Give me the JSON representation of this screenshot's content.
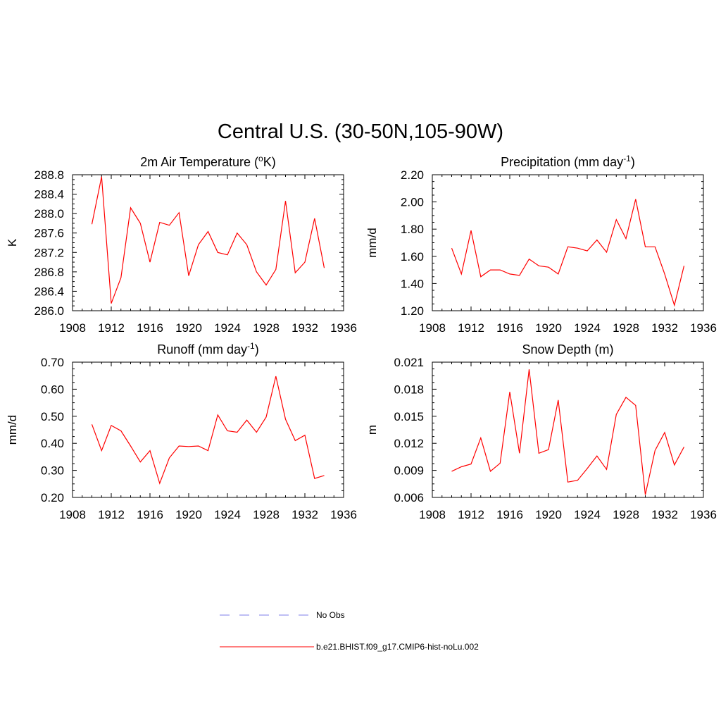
{
  "figure_title": "Central U.S. (30-50N,105-90W)",
  "legend": {
    "entries": [
      {
        "label": "No Obs",
        "color": "#9999ee",
        "style": "dashed"
      },
      {
        "label": "b.e21.BHIST.f09_g17.CMIP6-hist-noLu.002",
        "color": "#ff3030",
        "style": "solid"
      }
    ]
  },
  "chart_data": [
    {
      "type": "line",
      "title": "2m Air Temperature (°K)",
      "title_parts": [
        "2m Air Temperature (",
        "o",
        "K)"
      ],
      "ylabel": "K",
      "xlim": [
        1908,
        1936
      ],
      "ylim": [
        286.0,
        288.8
      ],
      "xticks": [
        1908,
        1912,
        1916,
        1920,
        1924,
        1928,
        1932,
        1936
      ],
      "yticks": [
        "286.0",
        "286.4",
        "286.8",
        "287.2",
        "287.6",
        "288.0",
        "288.4",
        "288.8"
      ],
      "series": [
        {
          "color": "#ff0000",
          "x": [
            1910,
            1911,
            1912,
            1913,
            1914,
            1915,
            1916,
            1917,
            1918,
            1919,
            1920,
            1921,
            1922,
            1923,
            1924,
            1925,
            1926,
            1927,
            1928,
            1929,
            1930,
            1931,
            1932,
            1933,
            1934
          ],
          "values": [
            287.78,
            288.76,
            286.15,
            286.68,
            288.12,
            287.8,
            287.0,
            287.82,
            287.76,
            288.02,
            286.72,
            287.36,
            287.63,
            287.2,
            287.15,
            287.6,
            287.36,
            286.8,
            286.53,
            286.85,
            288.26,
            286.78,
            287.0,
            287.9,
            286.88
          ]
        }
      ]
    },
    {
      "type": "line",
      "title": "Precipitation (mm day-1)",
      "title_parts": [
        "Precipitation (mm day",
        "-1",
        ")"
      ],
      "ylabel": "mm/d",
      "xlim": [
        1908,
        1936
      ],
      "ylim": [
        1.2,
        2.2
      ],
      "xticks": [
        1908,
        1912,
        1916,
        1920,
        1924,
        1928,
        1932,
        1936
      ],
      "yticks": [
        "1.20",
        "1.40",
        "1.60",
        "1.80",
        "2.00",
        "2.20"
      ],
      "series": [
        {
          "color": "#ff0000",
          "x": [
            1910,
            1911,
            1912,
            1913,
            1914,
            1915,
            1916,
            1917,
            1918,
            1919,
            1920,
            1921,
            1922,
            1923,
            1924,
            1925,
            1926,
            1927,
            1928,
            1929,
            1930,
            1931,
            1932,
            1933,
            1934
          ],
          "values": [
            1.66,
            1.47,
            1.79,
            1.45,
            1.5,
            1.5,
            1.47,
            1.46,
            1.58,
            1.53,
            1.52,
            1.47,
            1.67,
            1.66,
            1.64,
            1.72,
            1.63,
            1.87,
            1.73,
            2.02,
            1.67,
            1.67,
            1.47,
            1.24,
            1.53
          ]
        }
      ]
    },
    {
      "type": "line",
      "title": "Runoff (mm day-1)",
      "title_parts": [
        "Runoff (mm day",
        "-1",
        ")"
      ],
      "ylabel": "mm/d",
      "xlim": [
        1908,
        1936
      ],
      "ylim": [
        0.2,
        0.7
      ],
      "xticks": [
        1908,
        1912,
        1916,
        1920,
        1924,
        1928,
        1932,
        1936
      ],
      "yticks": [
        "0.20",
        "0.30",
        "0.40",
        "0.50",
        "0.60",
        "0.70"
      ],
      "series": [
        {
          "color": "#ff0000",
          "x": [
            1910,
            1911,
            1912,
            1913,
            1914,
            1915,
            1916,
            1917,
            1918,
            1919,
            1920,
            1921,
            1922,
            1923,
            1924,
            1925,
            1926,
            1927,
            1928,
            1929,
            1930,
            1931,
            1932,
            1933,
            1934
          ],
          "values": [
            0.47,
            0.373,
            0.466,
            0.446,
            0.39,
            0.331,
            0.373,
            0.252,
            0.346,
            0.39,
            0.388,
            0.39,
            0.373,
            0.505,
            0.446,
            0.441,
            0.486,
            0.441,
            0.497,
            0.648,
            0.489,
            0.41,
            0.43,
            0.27,
            0.281
          ]
        }
      ]
    },
    {
      "type": "line",
      "title": "Snow Depth (m)",
      "title_parts": [
        "Snow Depth (m)",
        "",
        ""
      ],
      "ylabel": "m",
      "xlim": [
        1908,
        1936
      ],
      "ylim": [
        0.006,
        0.021
      ],
      "xticks": [
        1908,
        1912,
        1916,
        1920,
        1924,
        1928,
        1932,
        1936
      ],
      "yticks": [
        "0.006",
        "0.009",
        "0.012",
        "0.015",
        "0.018",
        "0.021"
      ],
      "series": [
        {
          "color": "#ff0000",
          "x": [
            1910,
            1911,
            1912,
            1913,
            1914,
            1915,
            1916,
            1917,
            1918,
            1919,
            1920,
            1921,
            1922,
            1923,
            1924,
            1925,
            1926,
            1927,
            1928,
            1929,
            1930,
            1931,
            1932,
            1933,
            1934
          ],
          "values": [
            0.0089,
            0.0094,
            0.0097,
            0.0126,
            0.0089,
            0.0098,
            0.0177,
            0.0109,
            0.0202,
            0.0109,
            0.0113,
            0.0168,
            0.0077,
            0.0079,
            0.0092,
            0.0106,
            0.0091,
            0.0152,
            0.0171,
            0.0162,
            0.0063,
            0.0112,
            0.0132,
            0.0096,
            0.0116
          ]
        }
      ]
    }
  ]
}
